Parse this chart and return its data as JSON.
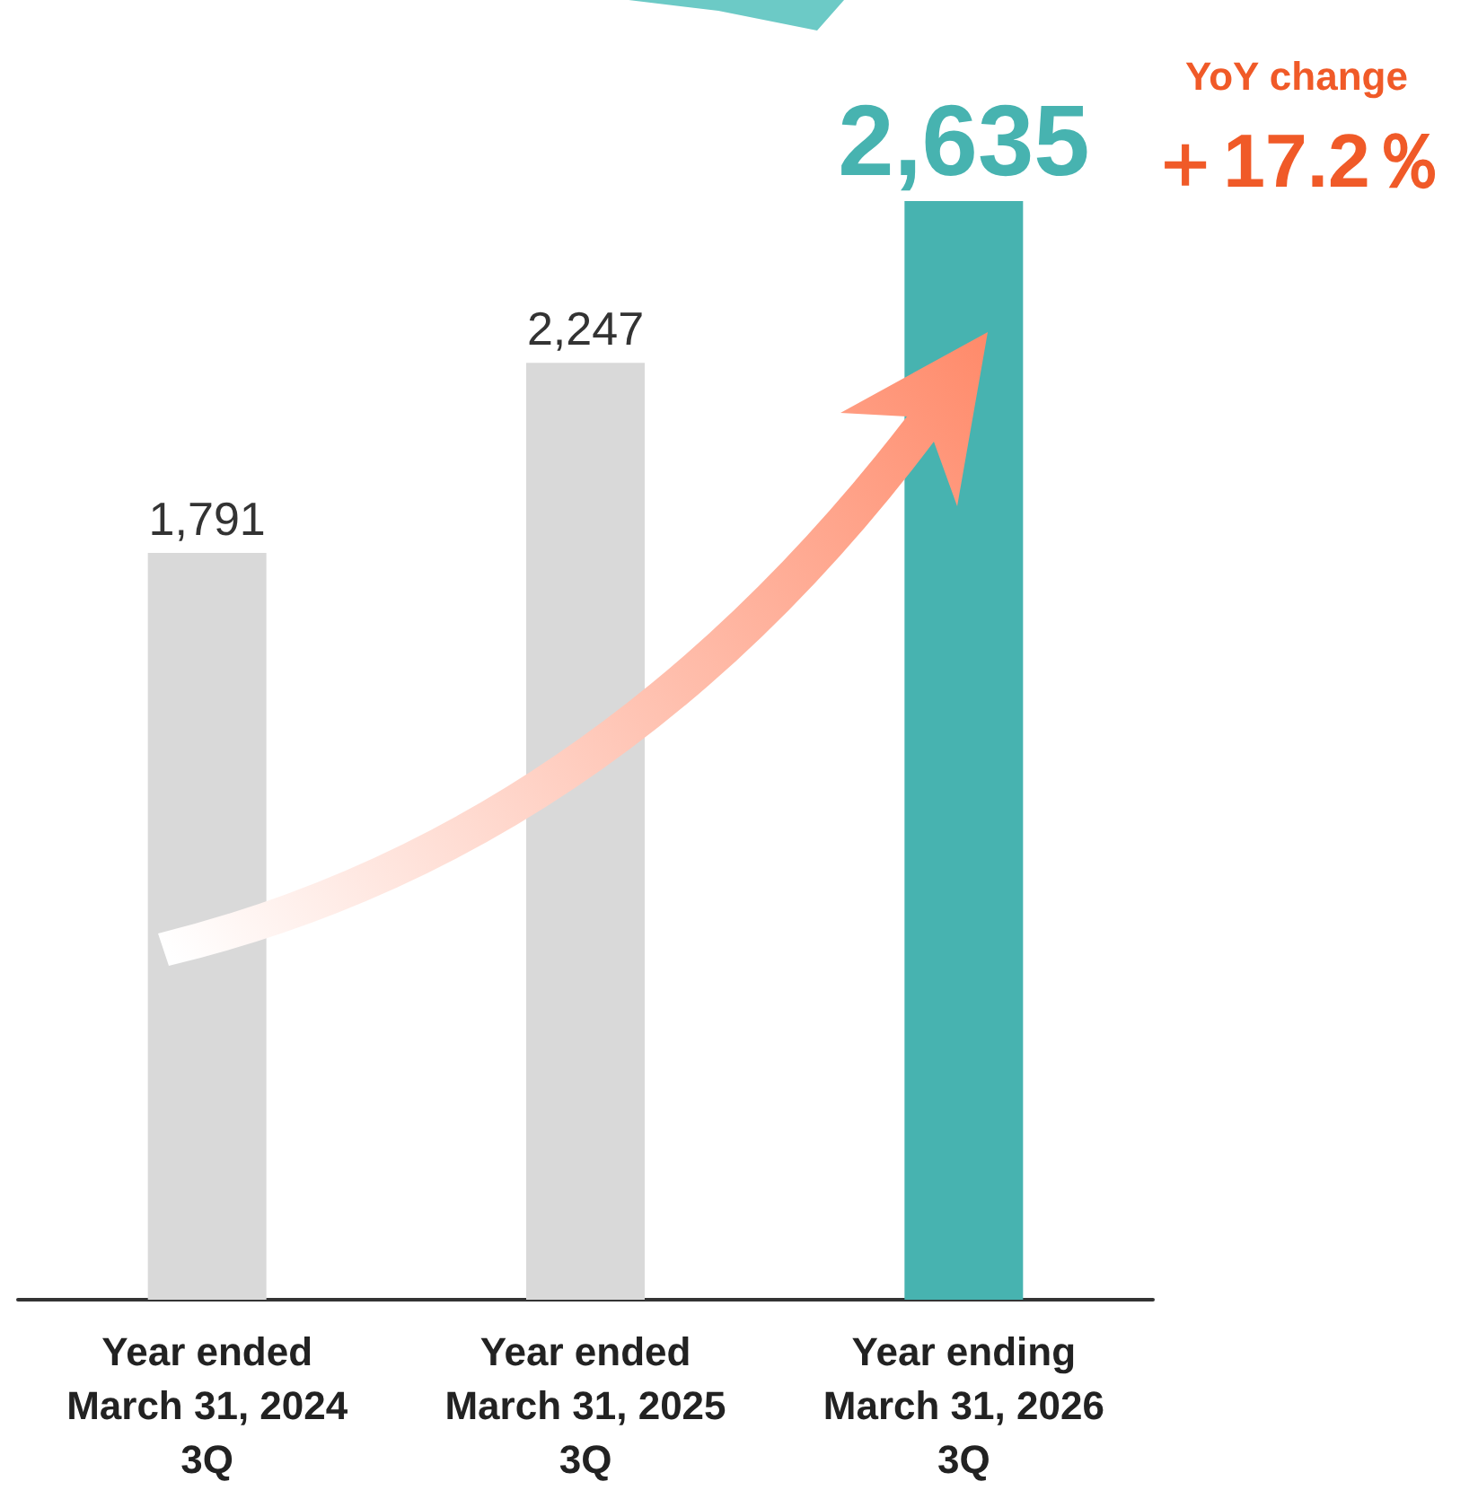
{
  "chart_data": {
    "type": "bar",
    "categories": [
      "Year ended\nMarch 31, 2024\n3Q",
      "Year ended\nMarch 31, 2025\n3Q",
      "Year ending\nMarch 31, 2026\n3Q"
    ],
    "values": [
      1791,
      2247,
      2635
    ],
    "colors": [
      "#d9d9d9",
      "#d9d9d9",
      "#47b3b0"
    ],
    "value_labels": [
      "1,791",
      "2,247",
      "2,635"
    ],
    "annotations": [
      "YoY change",
      "＋17.2％"
    ]
  }
}
